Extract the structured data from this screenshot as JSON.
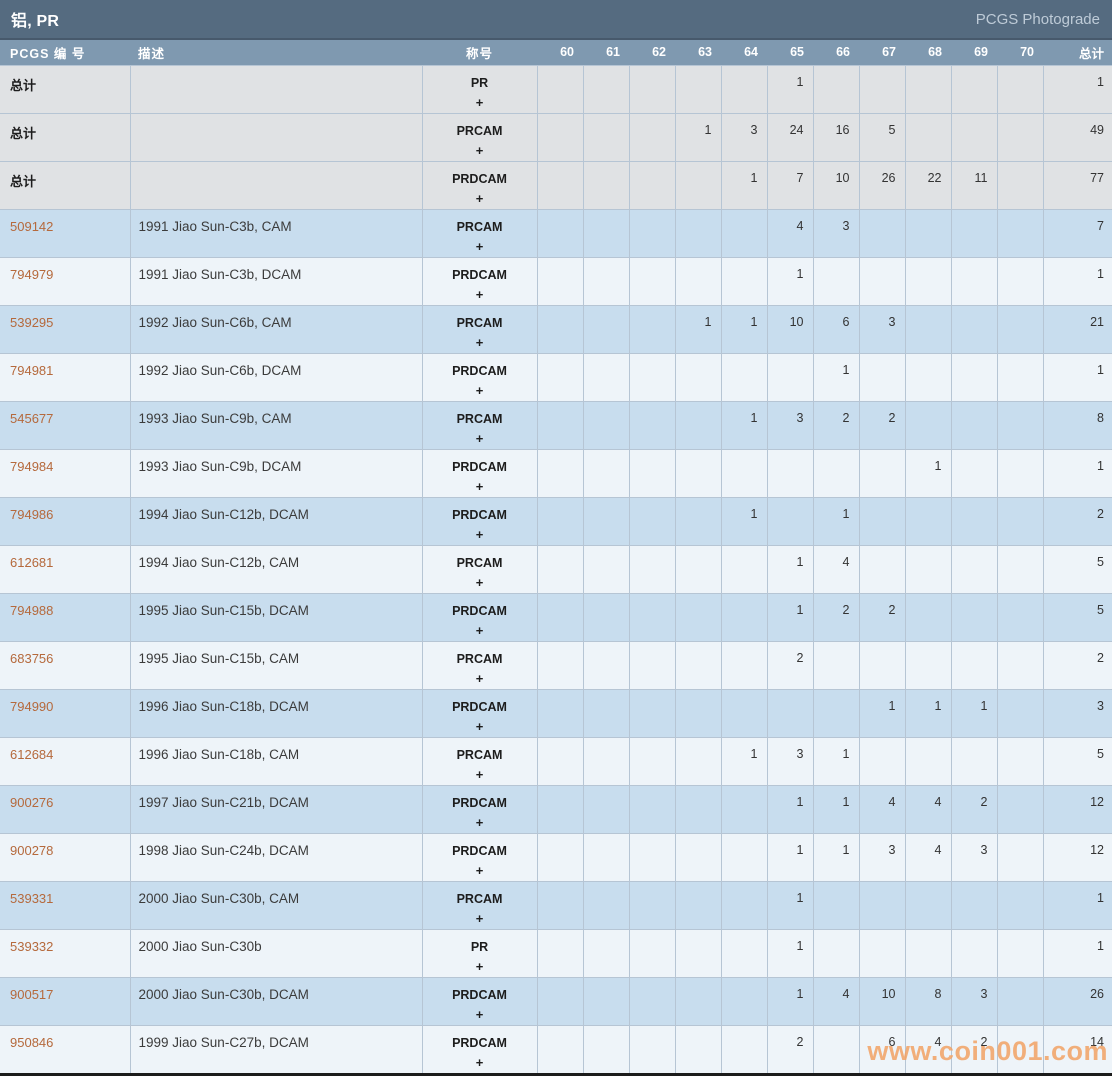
{
  "title_bar": {
    "title": "铝, PR",
    "photograde_link": "PCGS Photograde"
  },
  "watermark": "www.coin001.com",
  "colors": {
    "title-bar-bg": "#556b80",
    "header-bg": "#7f99b0",
    "border": "#b6c5d4",
    "row-total-bg": "#e0e2e4",
    "row-blue-bg": "#c8ddee",
    "row-light-bg": "#eef4f9",
    "pcgs-link": "#b5693c",
    "watermark": "#f2a265"
  },
  "table": {
    "columns": {
      "pcgs_no": "PCGS 编 号",
      "description": "描述",
      "designation": "称号",
      "grades": [
        "60",
        "61",
        "62",
        "63",
        "64",
        "65",
        "66",
        "67",
        "68",
        "69",
        "70"
      ],
      "total": "总计"
    },
    "designation_plus": "+",
    "rows": [
      {
        "is_total": true,
        "pcgs_no": "总计",
        "description": "",
        "designation": "PR",
        "grades": [
          null,
          null,
          null,
          null,
          null,
          "1",
          null,
          null,
          null,
          null,
          null
        ],
        "total": "1"
      },
      {
        "is_total": true,
        "pcgs_no": "总计",
        "description": "",
        "designation": "PRCAM",
        "grades": [
          null,
          null,
          null,
          "1",
          "3",
          "24",
          "16",
          "5",
          null,
          null,
          null
        ],
        "total": "49"
      },
      {
        "is_total": true,
        "pcgs_no": "总计",
        "description": "",
        "designation": "PRDCAM",
        "grades": [
          null,
          null,
          null,
          null,
          "1",
          "7",
          "10",
          "26",
          "22",
          "11",
          null
        ],
        "total": "77"
      },
      {
        "is_total": false,
        "pcgs_no": "509142",
        "description": "1991 Jiao Sun-C3b, CAM",
        "designation": "PRCAM",
        "grades": [
          null,
          null,
          null,
          null,
          null,
          "4",
          "3",
          null,
          null,
          null,
          null
        ],
        "total": "7"
      },
      {
        "is_total": false,
        "pcgs_no": "794979",
        "description": "1991 Jiao Sun-C3b, DCAM",
        "designation": "PRDCAM",
        "grades": [
          null,
          null,
          null,
          null,
          null,
          "1",
          null,
          null,
          null,
          null,
          null
        ],
        "total": "1"
      },
      {
        "is_total": false,
        "pcgs_no": "539295",
        "description": "1992 Jiao Sun-C6b, CAM",
        "designation": "PRCAM",
        "grades": [
          null,
          null,
          null,
          "1",
          "1",
          "10",
          "6",
          "3",
          null,
          null,
          null
        ],
        "total": "21"
      },
      {
        "is_total": false,
        "pcgs_no": "794981",
        "description": "1992 Jiao Sun-C6b, DCAM",
        "designation": "PRDCAM",
        "grades": [
          null,
          null,
          null,
          null,
          null,
          null,
          "1",
          null,
          null,
          null,
          null
        ],
        "total": "1"
      },
      {
        "is_total": false,
        "pcgs_no": "545677",
        "description": "1993 Jiao Sun-C9b, CAM",
        "designation": "PRCAM",
        "grades": [
          null,
          null,
          null,
          null,
          "1",
          "3",
          "2",
          "2",
          null,
          null,
          null
        ],
        "total": "8"
      },
      {
        "is_total": false,
        "pcgs_no": "794984",
        "description": "1993 Jiao Sun-C9b, DCAM",
        "designation": "PRDCAM",
        "grades": [
          null,
          null,
          null,
          null,
          null,
          null,
          null,
          null,
          "1",
          null,
          null
        ],
        "total": "1"
      },
      {
        "is_total": false,
        "pcgs_no": "794986",
        "description": "1994 Jiao Sun-C12b, DCAM",
        "designation": "PRDCAM",
        "grades": [
          null,
          null,
          null,
          null,
          "1",
          null,
          "1",
          null,
          null,
          null,
          null
        ],
        "total": "2"
      },
      {
        "is_total": false,
        "pcgs_no": "612681",
        "description": "1994 Jiao Sun-C12b, CAM",
        "designation": "PRCAM",
        "grades": [
          null,
          null,
          null,
          null,
          null,
          "1",
          "4",
          null,
          null,
          null,
          null
        ],
        "total": "5"
      },
      {
        "is_total": false,
        "pcgs_no": "794988",
        "description": "1995 Jiao Sun-C15b, DCAM",
        "designation": "PRDCAM",
        "grades": [
          null,
          null,
          null,
          null,
          null,
          "1",
          "2",
          "2",
          null,
          null,
          null
        ],
        "total": "5"
      },
      {
        "is_total": false,
        "pcgs_no": "683756",
        "description": "1995 Jiao Sun-C15b, CAM",
        "designation": "PRCAM",
        "grades": [
          null,
          null,
          null,
          null,
          null,
          "2",
          null,
          null,
          null,
          null,
          null
        ],
        "total": "2"
      },
      {
        "is_total": false,
        "pcgs_no": "794990",
        "description": "1996 Jiao Sun-C18b, DCAM",
        "designation": "PRDCAM",
        "grades": [
          null,
          null,
          null,
          null,
          null,
          null,
          null,
          "1",
          "1",
          "1",
          null
        ],
        "total": "3"
      },
      {
        "is_total": false,
        "pcgs_no": "612684",
        "description": "1996 Jiao Sun-C18b, CAM",
        "designation": "PRCAM",
        "grades": [
          null,
          null,
          null,
          null,
          "1",
          "3",
          "1",
          null,
          null,
          null,
          null
        ],
        "total": "5"
      },
      {
        "is_total": false,
        "pcgs_no": "900276",
        "description": "1997 Jiao Sun-C21b, DCAM",
        "designation": "PRDCAM",
        "grades": [
          null,
          null,
          null,
          null,
          null,
          "1",
          "1",
          "4",
          "4",
          "2",
          null
        ],
        "total": "12"
      },
      {
        "is_total": false,
        "pcgs_no": "900278",
        "description": "1998 Jiao Sun-C24b, DCAM",
        "designation": "PRDCAM",
        "grades": [
          null,
          null,
          null,
          null,
          null,
          "1",
          "1",
          "3",
          "4",
          "3",
          null
        ],
        "total": "12"
      },
      {
        "is_total": false,
        "pcgs_no": "539331",
        "description": "2000 Jiao Sun-C30b, CAM",
        "designation": "PRCAM",
        "grades": [
          null,
          null,
          null,
          null,
          null,
          "1",
          null,
          null,
          null,
          null,
          null
        ],
        "total": "1"
      },
      {
        "is_total": false,
        "pcgs_no": "539332",
        "description": "2000 Jiao Sun-C30b",
        "designation": "PR",
        "grades": [
          null,
          null,
          null,
          null,
          null,
          "1",
          null,
          null,
          null,
          null,
          null
        ],
        "total": "1"
      },
      {
        "is_total": false,
        "pcgs_no": "900517",
        "description": "2000 Jiao Sun-C30b, DCAM",
        "designation": "PRDCAM",
        "grades": [
          null,
          null,
          null,
          null,
          null,
          "1",
          "4",
          "10",
          "8",
          "3",
          null
        ],
        "total": "26"
      },
      {
        "is_total": false,
        "pcgs_no": "950846",
        "description": "1999 Jiao Sun-C27b, DCAM",
        "designation": "PRDCAM",
        "grades": [
          null,
          null,
          null,
          null,
          null,
          "2",
          null,
          "6",
          "4",
          "2",
          null
        ],
        "total": "14"
      }
    ]
  }
}
